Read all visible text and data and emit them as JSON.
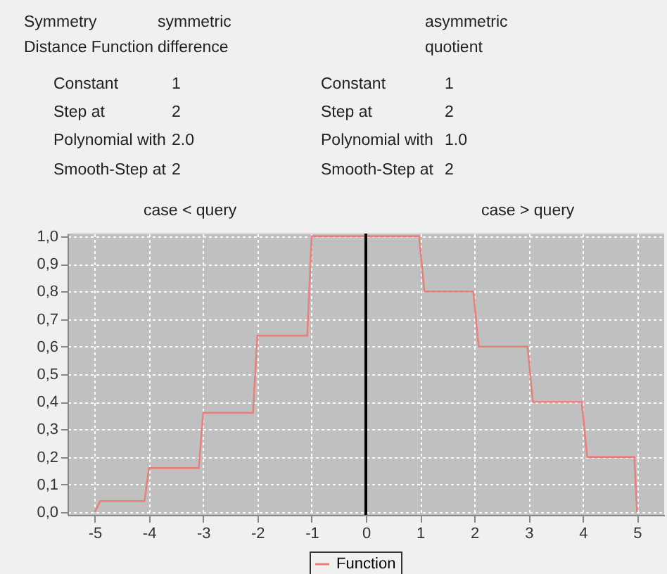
{
  "chart_data": {
    "type": "line",
    "x": [
      -5,
      -4.9,
      -4.08,
      -4,
      -3.08,
      -3,
      -2.08,
      -2,
      -1.08,
      -1,
      0,
      0.98,
      1.08,
      1.98,
      2.08,
      2.98,
      3.08,
      3.98,
      4.08,
      4.95,
      5
    ],
    "series": [
      {
        "name": "Function",
        "color": "#e8807c",
        "values": [
          0,
          0.04,
          0.04,
          0.16,
          0.16,
          0.36,
          0.36,
          0.64,
          0.64,
          1.0,
          1.0,
          1.0,
          0.8,
          0.8,
          0.6,
          0.6,
          0.4,
          0.4,
          0.2,
          0.2,
          0
        ]
      }
    ],
    "xlim": [
      -5.5,
      5.5
    ],
    "xticks": [
      -5,
      -4,
      -3,
      -2,
      -1,
      0,
      1,
      2,
      3,
      4,
      5
    ],
    "ylim": [
      -0.01,
      1.01
    ],
    "yticks": [
      {
        "value": 0,
        "label": "0,0"
      },
      {
        "value": 0.1,
        "label": "0,1"
      },
      {
        "value": 0.2,
        "label": "0,2"
      },
      {
        "value": 0.3,
        "label": "0,3"
      },
      {
        "value": 0.4,
        "label": "0,4"
      },
      {
        "value": 0.5,
        "label": "0,5"
      },
      {
        "value": 0.6,
        "label": "0,6"
      },
      {
        "value": 0.7,
        "label": "0,7"
      },
      {
        "value": 0.8,
        "label": "0,8"
      },
      {
        "value": 0.9,
        "label": "0,9"
      },
      {
        "value": 1.0,
        "label": "1,0"
      }
    ],
    "ref_lines": [
      {
        "axis": "x",
        "value": 0,
        "color": "#000000"
      }
    ],
    "grid": true,
    "legend": "bottom",
    "line_style": "solid",
    "marker": "none",
    "annotations": [
      "Symmetry",
      "symmetric",
      "asymmetric",
      "Distance Function",
      "difference",
      "quotient",
      "Constant",
      "1",
      "Constant",
      "1",
      "Step at",
      "2",
      "Step at",
      "2",
      "Polynomial with",
      "2.0",
      "Polynomial with",
      "1.0",
      "Smooth-Step at",
      "2",
      "Smooth-Step at",
      "2",
      "case < query",
      "case > query"
    ]
  }
}
